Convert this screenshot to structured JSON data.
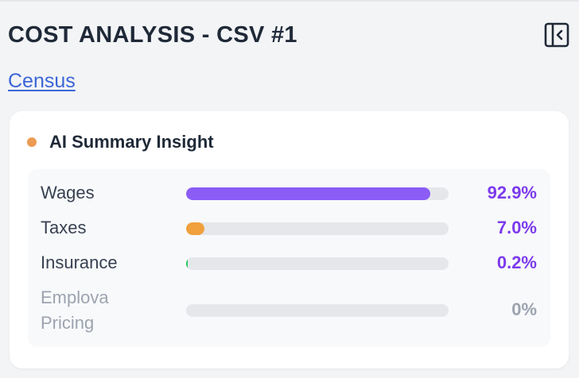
{
  "header": {
    "title": "COST ANALYSIS - CSV #1",
    "collapse_icon": "sidebar-collapse-icon"
  },
  "link": {
    "label": "Census"
  },
  "card": {
    "title": "AI Summary Insight",
    "dot_color": "#ec9b52",
    "rows": [
      {
        "label": "Wages",
        "value": "92.9%",
        "fraction": 0.929,
        "bar_color": "#8b5cf6",
        "value_color": "#7c3aed",
        "muted": false
      },
      {
        "label": "Taxes",
        "value": "7.0%",
        "fraction": 0.07,
        "bar_color": "#f0a03c",
        "value_color": "#7c3aed",
        "muted": false
      },
      {
        "label": "Insurance",
        "value": "0.2%",
        "fraction": 0.002,
        "bar_color": "#22c55e",
        "value_color": "#7c3aed",
        "muted": false
      },
      {
        "label": "Emplova Pricing",
        "value": "0%",
        "fraction": 0,
        "bar_color": "#9ca3af",
        "value_color": "#9ca3af",
        "muted": true
      }
    ]
  }
}
